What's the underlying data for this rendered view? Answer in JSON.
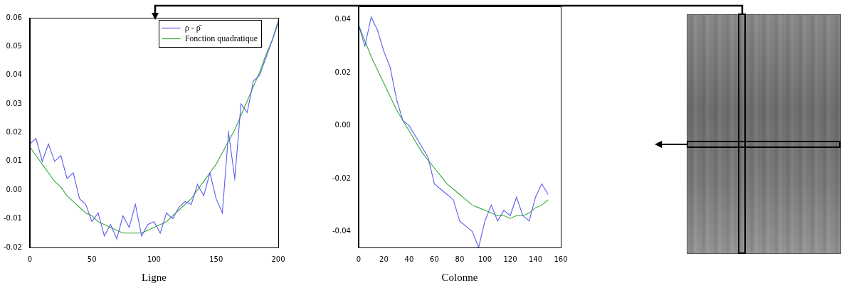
{
  "chart_data": [
    {
      "type": "line",
      "x_label": "Ligne",
      "x": [
        0,
        5,
        10,
        15,
        20,
        25,
        30,
        35,
        40,
        45,
        50,
        55,
        60,
        65,
        70,
        75,
        80,
        85,
        90,
        95,
        100,
        105,
        110,
        115,
        120,
        125,
        130,
        135,
        140,
        145,
        150,
        155,
        160,
        165,
        170,
        175,
        180,
        185,
        190,
        195,
        200
      ],
      "xlim": [
        0,
        200
      ],
      "xticks": [
        0,
        50,
        100,
        150,
        200
      ],
      "ylim": [
        -0.02,
        0.06
      ],
      "yticks": [
        -0.02,
        -0.01,
        {
          "value": 0,
          "label": "0.00"
        },
        0.01,
        0.02,
        0.03,
        0.04,
        0.05,
        0.06
      ],
      "grid": false,
      "legend": "upper right",
      "series": [
        {
          "name": "ρ - ρ̄",
          "color": "#5b5bf0",
          "values": [
            0.016,
            0.018,
            0.01,
            0.016,
            0.01,
            0.012,
            0.004,
            0.006,
            -0.003,
            -0.005,
            -0.011,
            -0.008,
            -0.016,
            -0.012,
            -0.017,
            -0.009,
            -0.013,
            -0.005,
            -0.016,
            -0.012,
            -0.011,
            -0.015,
            -0.008,
            -0.01,
            -0.006,
            -0.004,
            -0.005,
            0.002,
            -0.002,
            0.006,
            -0.003,
            -0.008,
            0.02,
            0.004,
            0.03,
            0.027,
            0.038,
            0.04,
            0.046,
            0.052,
            0.059
          ]
        },
        {
          "name": "Fonction quadratique",
          "color": "#33aa33",
          "values": [
            0.015,
            0.012,
            0.009,
            0.006,
            0.003,
            0.001,
            -0.002,
            -0.004,
            -0.006,
            -0.008,
            -0.009,
            -0.011,
            -0.012,
            -0.013,
            -0.014,
            -0.015,
            -0.015,
            -0.015,
            -0.015,
            -0.014,
            -0.013,
            -0.012,
            -0.011,
            -0.009,
            -0.007,
            -0.005,
            -0.003,
            0.0,
            0.003,
            0.006,
            0.009,
            0.013,
            0.017,
            0.021,
            0.026,
            0.031,
            0.036,
            0.041,
            0.047,
            0.052,
            0.058
          ]
        }
      ]
    },
    {
      "type": "line",
      "x_label": "Colonne",
      "x": [
        0,
        5,
        10,
        15,
        20,
        25,
        30,
        35,
        40,
        45,
        50,
        55,
        60,
        65,
        70,
        75,
        80,
        85,
        90,
        95,
        100,
        105,
        110,
        115,
        120,
        125,
        130,
        135,
        140,
        145,
        150
      ],
      "xlim": [
        0,
        160
      ],
      "xticks": [
        0,
        20,
        40,
        60,
        80,
        100,
        120,
        140,
        160
      ],
      "ylim": [
        -0.046,
        0.045
      ],
      "yticks": [
        -0.04,
        -0.02,
        {
          "value": 0,
          "label": "0.00"
        },
        0.02,
        0.04
      ],
      "grid": false,
      "series": [
        {
          "color": "#5b5bf0",
          "values": [
            0.038,
            0.03,
            0.041,
            0.036,
            0.028,
            0.022,
            0.01,
            0.002,
            0.0,
            -0.004,
            -0.008,
            -0.012,
            -0.022,
            -0.024,
            -0.026,
            -0.028,
            -0.036,
            -0.038,
            -0.04,
            -0.046,
            -0.036,
            -0.03,
            -0.036,
            -0.032,
            -0.034,
            -0.027,
            -0.034,
            -0.036,
            -0.027,
            -0.022,
            -0.026
          ]
        },
        {
          "color": "#33aa33",
          "values": [
            0.038,
            0.032,
            0.026,
            0.021,
            0.016,
            0.011,
            0.006,
            0.002,
            -0.002,
            -0.006,
            -0.01,
            -0.013,
            -0.016,
            -0.019,
            -0.022,
            -0.024,
            -0.026,
            -0.028,
            -0.03,
            -0.031,
            -0.032,
            -0.033,
            -0.034,
            -0.034,
            -0.035,
            -0.034,
            -0.034,
            -0.033,
            -0.031,
            -0.03,
            -0.028
          ]
        }
      ]
    }
  ]
}
